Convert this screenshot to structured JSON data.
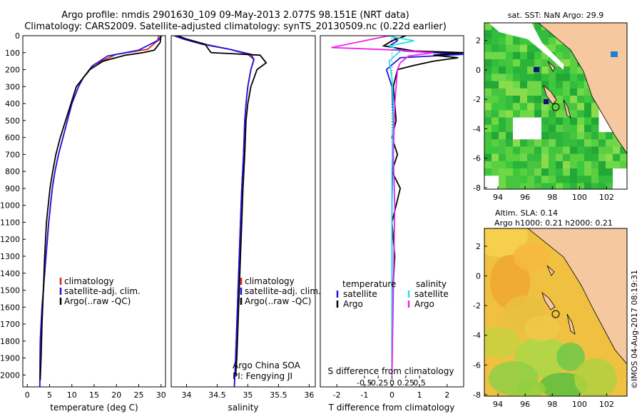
{
  "header": {
    "line1": "Argo profile: nmdis 2901630_109 09-May-2013 2.077S 98.151E (NRT data)",
    "line2": "Climatology: CARS2009. Satellite-adjusted climatology: synTS_20130509.nc (0.22d earlier)"
  },
  "colors": {
    "climatology": "#e02020",
    "satellite": "#1818e0",
    "argo": "#000000",
    "sal_satellite": "#20e0e0",
    "sal_argo": "#f020f0",
    "sea_sst": "#3cc83c",
    "land": "#f5c8a0",
    "sla_warm": "#f5b040"
  },
  "depth_axis": {
    "ticks": [
      "0",
      "100",
      "200",
      "300",
      "400",
      "500",
      "600",
      "700",
      "800",
      "900",
      "1000",
      "1100",
      "1200",
      "1300",
      "1400",
      "1500",
      "1600",
      "1700",
      "1800",
      "1900",
      "2000"
    ]
  },
  "chart_data": [
    {
      "type": "line",
      "id": "temperature",
      "xlabel": "temperature (deg C)",
      "xlim": [
        -1,
        31
      ],
      "ylim": [
        2070,
        0
      ],
      "xticks": [
        "0",
        "5",
        "10",
        "15",
        "20",
        "25",
        "30"
      ],
      "legend": [
        {
          "label": "climatology",
          "color": "#e02020"
        },
        {
          "label": "satellite-adj. clim.",
          "color": "#1818e0"
        },
        {
          "label": "Argo(..raw -QC)",
          "color": "#000000"
        }
      ],
      "series": [
        {
          "name": "climatology",
          "color": "#e02020",
          "x": [
            29.5,
            29.2,
            27,
            20,
            15,
            12.5,
            11.5,
            10,
            9,
            8,
            7,
            6.2,
            5.6,
            5.2,
            4.8,
            4.5,
            4.2,
            3.9,
            3.6,
            3.3,
            3.1,
            2.9,
            2.8
          ],
          "y": [
            0,
            30,
            80,
            110,
            170,
            250,
            300,
            400,
            500,
            600,
            700,
            800,
            900,
            1000,
            1100,
            1200,
            1300,
            1400,
            1500,
            1600,
            1700,
            1800,
            2070
          ]
        },
        {
          "name": "satellite-adj. clim.",
          "color": "#1818e0",
          "x": [
            30,
            29.5,
            25,
            18,
            14.5,
            12.5,
            11.5,
            10,
            9,
            8,
            7,
            6.2,
            5.6,
            5.2,
            4.8,
            4.5,
            4.2,
            3.9,
            3.6,
            3.3,
            3.1,
            2.9,
            2.8
          ],
          "y": [
            0,
            25,
            85,
            120,
            180,
            250,
            300,
            400,
            500,
            600,
            700,
            800,
            900,
            1000,
            1100,
            1200,
            1300,
            1400,
            1500,
            1600,
            1700,
            1800,
            2070
          ]
        },
        {
          "name": "Argo(..raw -QC)",
          "color": "#000000",
          "x": [
            30,
            29.8,
            28.5,
            26,
            22,
            17,
            14,
            12.5,
            11,
            9.8,
            8.6,
            7.4,
            6.4,
            5.7,
            5.1,
            4.7,
            4.3,
            3.9,
            3.6,
            3.3,
            3.1,
            2.9
          ],
          "y": [
            0,
            40,
            85,
            100,
            115,
            150,
            200,
            250,
            300,
            400,
            500,
            600,
            700,
            800,
            900,
            1000,
            1100,
            1300,
            1500,
            1700,
            1900,
            2030
          ]
        }
      ]
    },
    {
      "type": "line",
      "id": "salinity",
      "xlabel": "salinity",
      "xlim": [
        33.75,
        36.1
      ],
      "ylim": [
        2070,
        0
      ],
      "xticks": [
        "34",
        "34.5",
        "35",
        "35.5",
        "36"
      ],
      "legend": [
        {
          "label": "climatology",
          "color": "#e02020"
        },
        {
          "label": "satellite-adj. clim.",
          "color": "#1818e0"
        },
        {
          "label": "Argo(..raw -QC)",
          "color": "#000000"
        }
      ],
      "annotation": [
        "Argo China SOA",
        "PI: Fengying JI"
      ],
      "series": [
        {
          "name": "climatology",
          "color": "#e02020",
          "x": [
            33.85,
            34,
            34.3,
            34.7,
            35,
            35.1,
            35.05,
            35,
            34.97,
            34.95,
            34.93,
            34.9,
            34.88,
            34.86,
            34.84,
            34.82,
            34.8,
            34.78
          ],
          "y": [
            0,
            20,
            50,
            80,
            110,
            140,
            200,
            300,
            400,
            500,
            700,
            900,
            1100,
            1300,
            1500,
            1700,
            1900,
            2070
          ]
        },
        {
          "name": "satellite-adj. clim.",
          "color": "#1818e0",
          "x": [
            33.8,
            33.95,
            34.25,
            34.7,
            35.05,
            35.1,
            35.05,
            35,
            34.97,
            34.95,
            34.93,
            34.9,
            34.88,
            34.86,
            34.84,
            34.82,
            34.8,
            34.78
          ],
          "y": [
            0,
            20,
            50,
            80,
            110,
            140,
            200,
            300,
            400,
            500,
            700,
            900,
            1100,
            1300,
            1500,
            1700,
            1900,
            2070
          ]
        },
        {
          "name": "Argo(..raw -QC)",
          "color": "#000000",
          "x": [
            33.85,
            34,
            34.3,
            34.4,
            34.7,
            35.2,
            35.3,
            35.15,
            35.1,
            35.05,
            35,
            34.97,
            34.95,
            34.92,
            34.9,
            34.88,
            34.86,
            34.84,
            34.82,
            34.8
          ],
          "y": [
            0,
            20,
            50,
            100,
            105,
            115,
            160,
            200,
            250,
            300,
            400,
            500,
            700,
            900,
            1100,
            1300,
            1500,
            1700,
            1900,
            2000
          ]
        }
      ]
    },
    {
      "type": "line",
      "id": "difference",
      "xlabel": "T difference from climatology",
      "top_xlabel": "S difference from climatology",
      "xlim": [
        -2.6,
        2.6
      ],
      "ylim": [
        2070,
        0
      ],
      "xticks": [
        "-2",
        "-1",
        "0",
        "1",
        "2"
      ],
      "sticks": [
        "-0.5",
        "-0.25",
        "0",
        "0.25",
        "0.5"
      ],
      "legend_titles": [
        "temperature",
        "salinity"
      ],
      "legend": [
        {
          "group": "temperature",
          "label": "satellite",
          "color": "#1818e0"
        },
        {
          "group": "temperature",
          "label": "Argo",
          "color": "#000000"
        },
        {
          "group": "salinity",
          "label": "satellite",
          "color": "#20e0e0"
        },
        {
          "group": "salinity",
          "label": "Argo",
          "color": "#f020f0"
        }
      ],
      "series": [
        {
          "name": "T satellite",
          "color": "#1818e0",
          "x": [
            0,
            0.2,
            -0.1,
            0.4,
            2.6,
            0.3,
            -0.2,
            0,
            0.05,
            0,
            0
          ],
          "y": [
            0,
            30,
            60,
            90,
            110,
            130,
            200,
            300,
            500,
            1000,
            2000
          ]
        },
        {
          "name": "T Argo",
          "color": "#000000",
          "x": [
            0.5,
            0,
            -0.3,
            0.8,
            2.6,
            1.5,
            2.4,
            1.5,
            0.8,
            0.2,
            0.05,
            0.15,
            0,
            0.2,
            0,
            0.3,
            0.15,
            0,
            0.1,
            0,
            0
          ],
          "y": [
            0,
            30,
            60,
            90,
            100,
            115,
            130,
            150,
            175,
            200,
            300,
            500,
            600,
            700,
            800,
            900,
            1000,
            1100,
            1300,
            1600,
            2000
          ]
        },
        {
          "name": "S satellite",
          "color": "#20e0e0",
          "x": [
            -0.2,
            0.8,
            -0.1,
            0.3,
            -0.1,
            0,
            0.05,
            0,
            0,
            0
          ],
          "y": [
            0,
            30,
            60,
            90,
            150,
            250,
            400,
            800,
            1500,
            2000
          ]
        },
        {
          "name": "S Argo",
          "color": "#f020f0",
          "x": [
            -0.1,
            -2.2,
            0.2,
            1.5,
            0.6,
            0.3,
            0.2,
            0.1,
            0.05,
            0.1,
            0
          ],
          "y": [
            0,
            70,
            85,
            100,
            120,
            160,
            200,
            400,
            700,
            1000,
            2000
          ]
        }
      ]
    }
  ],
  "map_sst": {
    "title": "sat. SST: NaN Argo: 29.9",
    "xticks": [
      "94",
      "96",
      "98",
      "100",
      "102"
    ],
    "yticks": [
      "2",
      "0",
      "-2",
      "-4",
      "-6",
      "-8"
    ]
  },
  "map_sla": {
    "title1": "Altim. SLA: 0.14",
    "title2": "Argo h1000: 0.21 h2000: 0.21",
    "xticks": [
      "94",
      "96",
      "98",
      "100",
      "102"
    ],
    "yticks": [
      "2",
      "0",
      "-2",
      "-4",
      "-6",
      "-8"
    ]
  },
  "credit": "©IMOS 04-Aug-2017 08:19:31"
}
